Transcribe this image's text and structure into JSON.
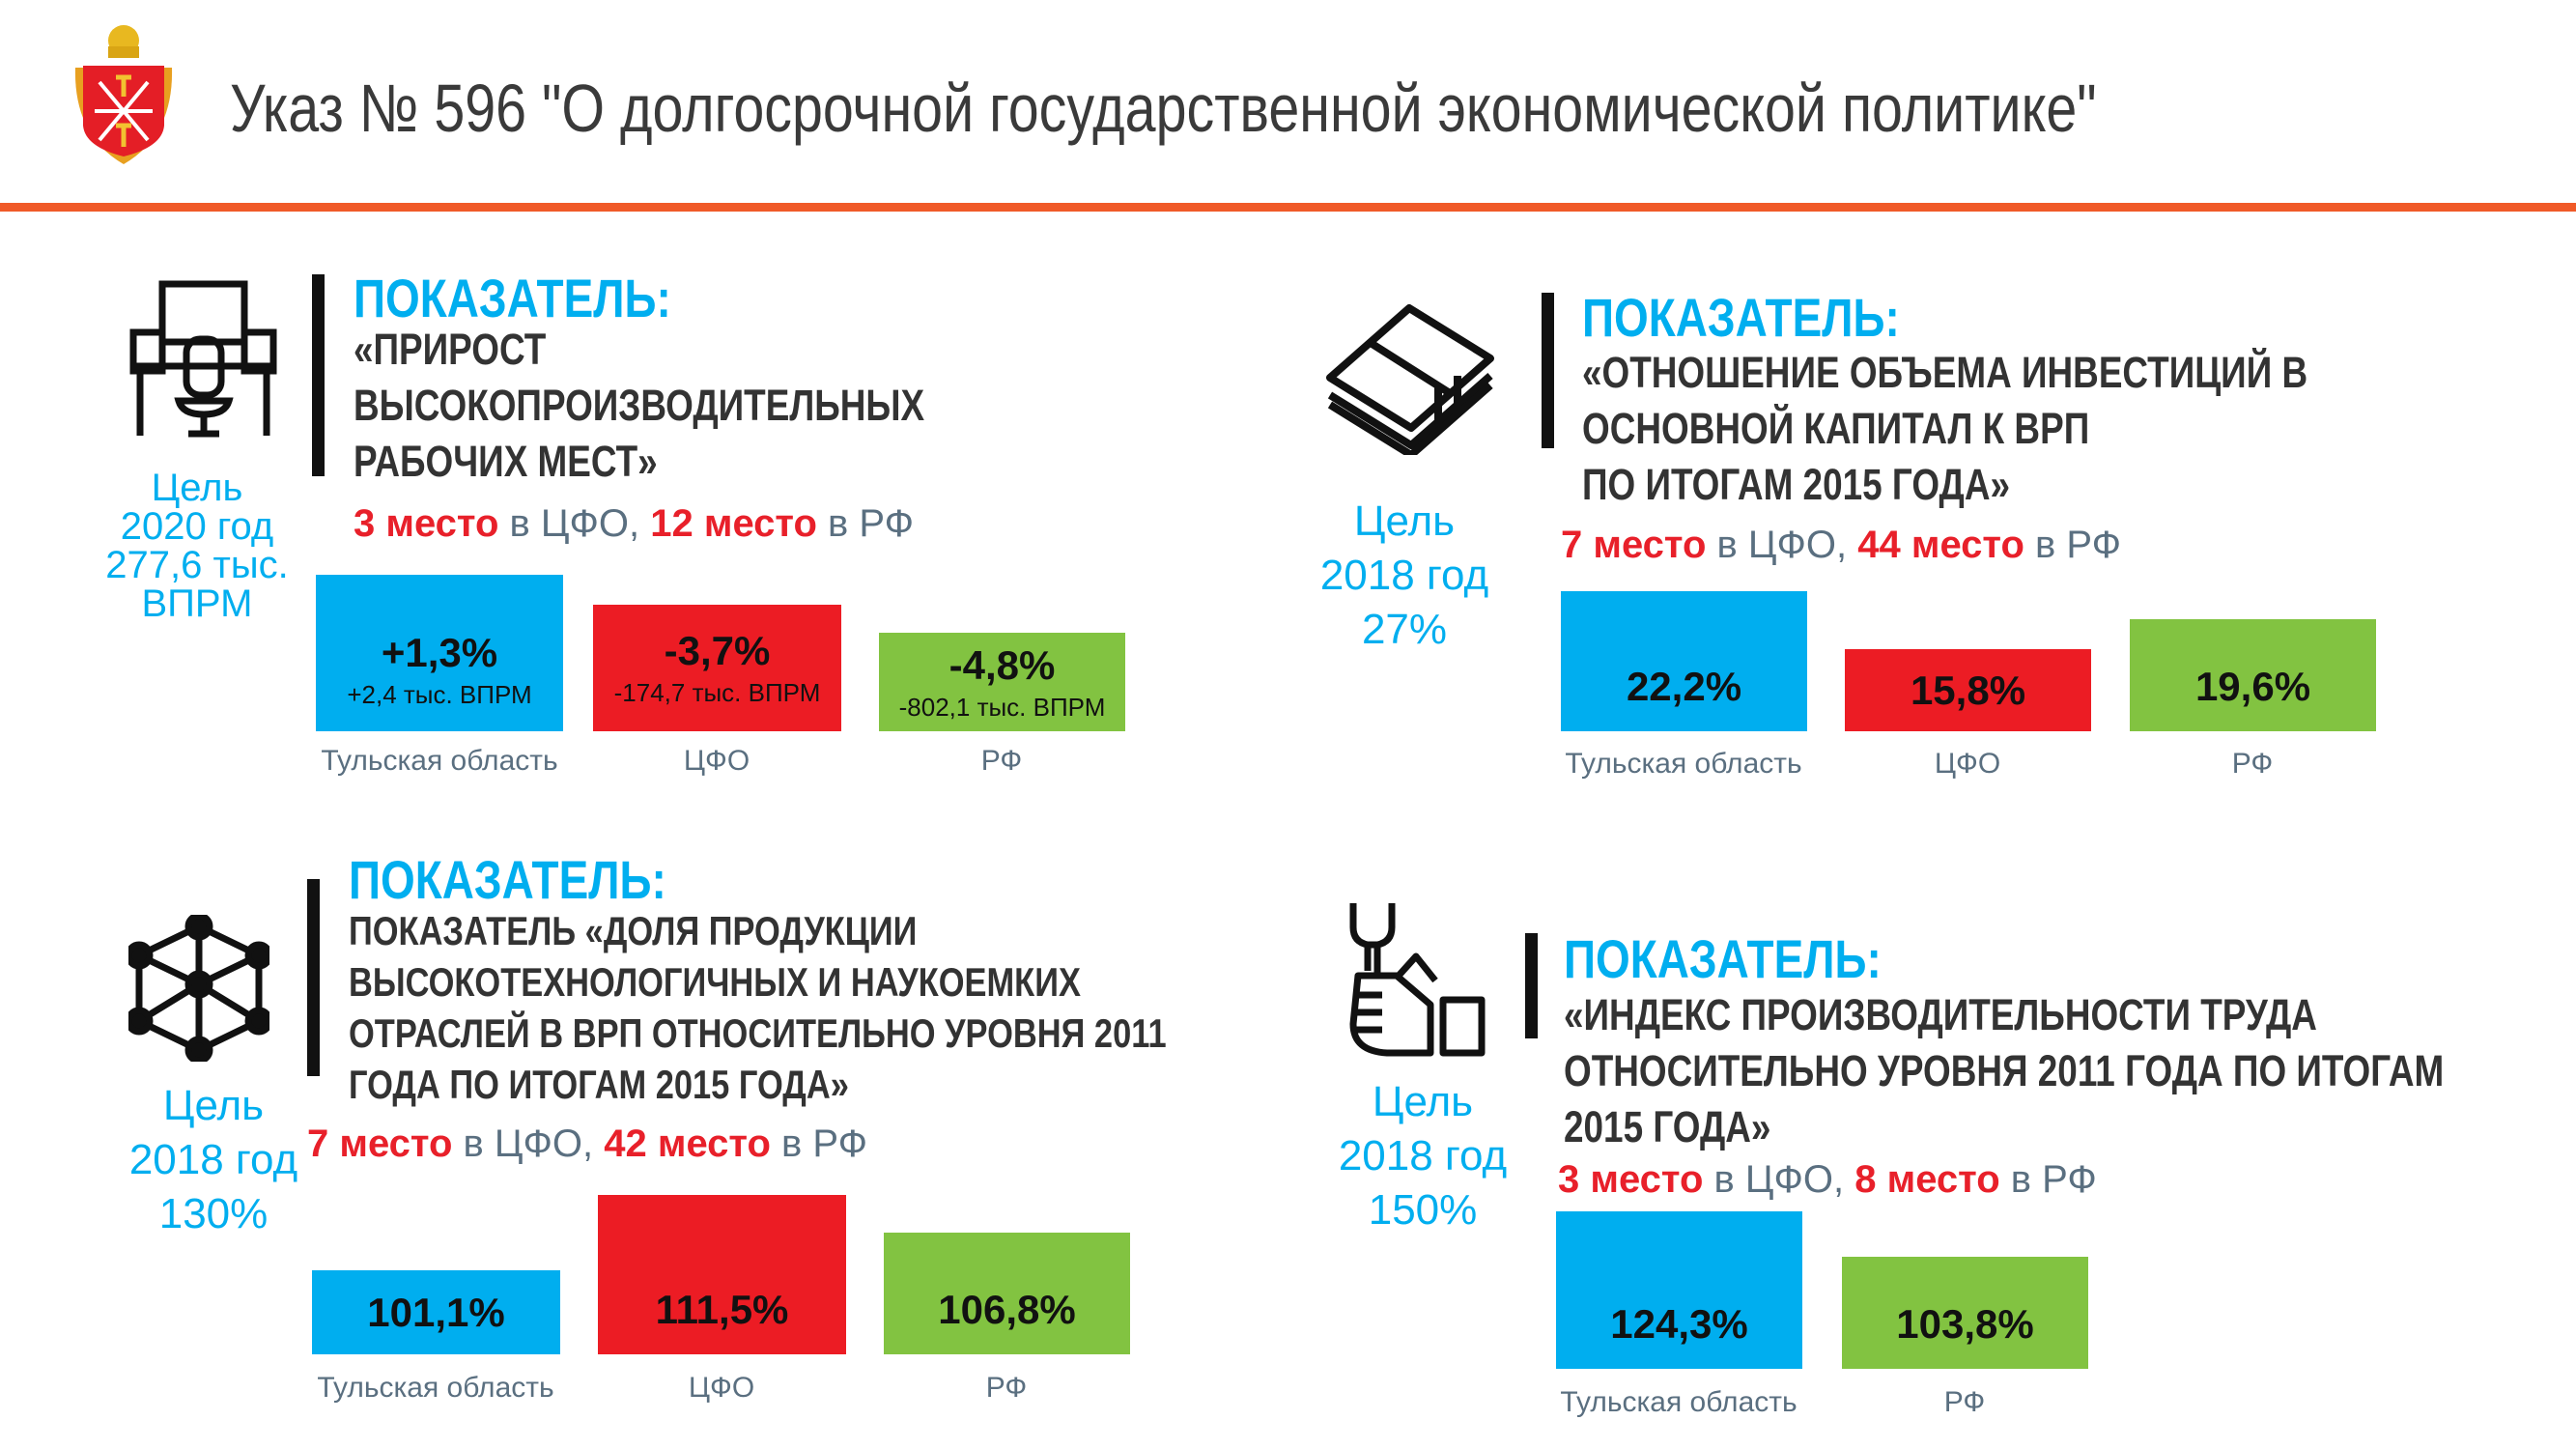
{
  "header": {
    "title": "Указ № 596 \"О долгосрочной государственной экономической политике\"",
    "logo": "tula-coat-of-arms"
  },
  "colors": {
    "accent": "#f05a28",
    "blue": "#00aeef",
    "red": "#ec1c24",
    "green": "#82c341"
  },
  "panels": [
    {
      "icon": "workplace-icon",
      "heading": "ПОКАЗАТЕЛЬ:",
      "lines": [
        "«ПРИРОСТ",
        "ВЫСОКОПРОИЗВОДИТЕЛЬНЫХ",
        "РАБОЧИХ МЕСТ»"
      ],
      "rank": {
        "cfo_place": "3 место",
        "cfo_text": " в ЦФО, ",
        "rf_place": "12 место",
        "rf_text": " в РФ"
      },
      "goal": [
        "Цель",
        "2020 год",
        "277,6 тыс.",
        "ВПРМ"
      ],
      "bars": [
        {
          "label": "Тульская область",
          "value": "+1,3%",
          "sub": "+2,4 тыс. ВПРМ"
        },
        {
          "label": "ЦФО",
          "value": "-3,7%",
          "sub": "-174,7 тыс. ВПРМ"
        },
        {
          "label": "РФ",
          "value": "-4,8%",
          "sub": "-802,1 тыс. ВПРМ"
        }
      ]
    },
    {
      "icon": "money-stack-icon",
      "heading": "ПОКАЗАТЕЛЬ:",
      "lines": [
        "«ОТНОШЕНИЕ ОБЪЕМА ИНВЕСТИЦИЙ В",
        "ОСНОВНОЙ КАПИТАЛ К ВРП",
        "ПО ИТОГАМ 2015 ГОДА»"
      ],
      "rank": {
        "cfo_place": "7 место",
        "cfo_text": " в ЦФО, ",
        "rf_place": "44 место",
        "rf_text": " в РФ"
      },
      "goal": [
        "Цель",
        "2018 год",
        "27%"
      ],
      "bars": [
        {
          "label": "Тульская область",
          "value": "22,2%"
        },
        {
          "label": "ЦФО",
          "value": "15,8%"
        },
        {
          "label": "РФ",
          "value": "19,6%"
        }
      ]
    },
    {
      "icon": "network-cube-icon",
      "heading": "ПОКАЗАТЕЛЬ:",
      "lines": [
        "ПОКАЗАТЕЛЬ «ДОЛЯ ПРОДУКЦИИ",
        "ВЫСОКОТЕХНОЛОГИЧНЫХ И НАУКОЕМКИХ",
        "ОТРАСЛЕЙ В ВРП ОТНОСИТЕЛЬНО УРОВНЯ 2011",
        "ГОДА ПО ИТОГАМ 2015 ГОДА»"
      ],
      "rank": {
        "cfo_place": "7 место",
        "cfo_text": " в ЦФО, ",
        "rf_place": "42 место",
        "rf_text": " в РФ"
      },
      "goal": [
        "Цель",
        "2018 год",
        "130%"
      ],
      "bars": [
        {
          "label": "Тульская область",
          "value": "101,1%"
        },
        {
          "label": "ЦФО",
          "value": "111,5%"
        },
        {
          "label": "РФ",
          "value": "106,8%"
        }
      ]
    },
    {
      "icon": "wrench-hand-icon",
      "heading": "ПОКАЗАТЕЛЬ:",
      "lines": [
        "«ИНДЕКС ПРОИЗВОДИТЕЛЬНОСТИ ТРУДА",
        "ОТНОСИТЕЛЬНО УРОВНЯ 2011 ГОДА ПО ИТОГАМ",
        "2015 ГОДА»"
      ],
      "rank": {
        "cfo_place": "3 место",
        "cfo_text": " в ЦФО, ",
        "rf_place": "8 место",
        "rf_text": " в РФ"
      },
      "goal": [
        "Цель",
        "2018 год",
        "150%"
      ],
      "bars": [
        {
          "label": "Тульская область",
          "value": "124,3%"
        },
        {
          "label": "РФ",
          "value": "103,8%"
        }
      ]
    }
  ]
}
